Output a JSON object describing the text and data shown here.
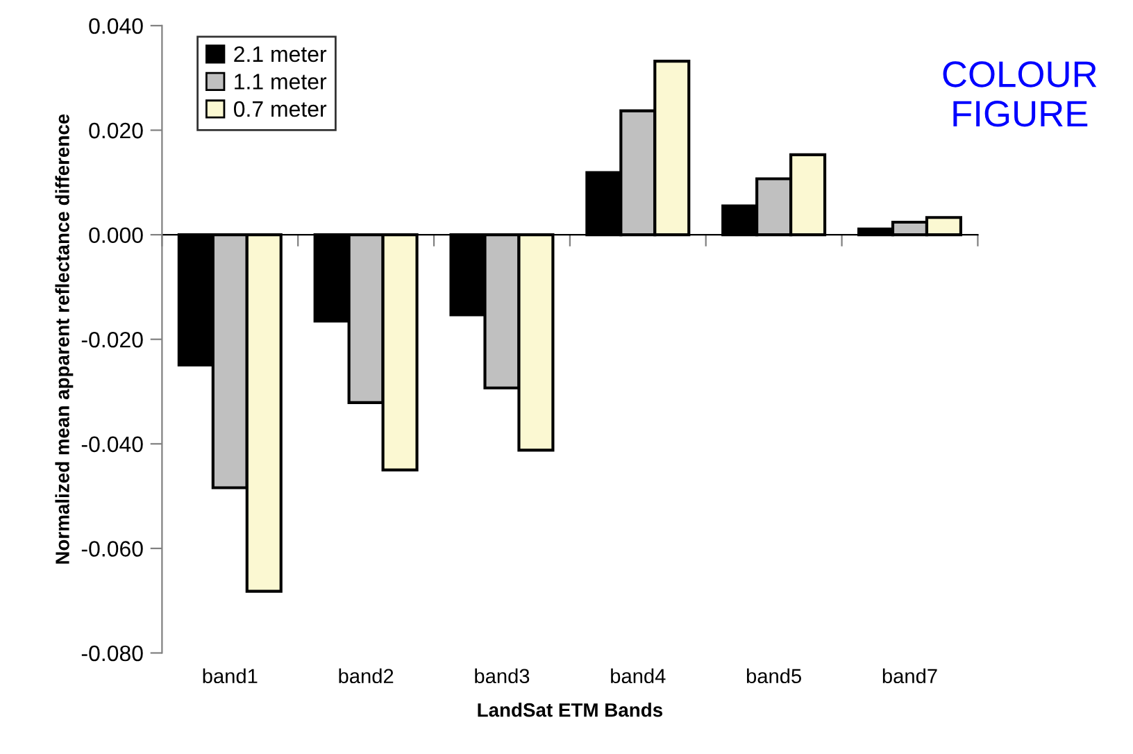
{
  "chart_data": {
    "type": "bar",
    "xlabel": "LandSat ETM Bands",
    "ylabel": "Normalized mean apparent reflectance difference",
    "categories": [
      "band1",
      "band2",
      "band3",
      "band4",
      "band5",
      "band7"
    ],
    "series": [
      {
        "name": "2.1 meter",
        "color": "#000000",
        "values": [
          -0.0249,
          -0.0165,
          -0.0153,
          0.0119,
          0.0055,
          0.0011
        ]
      },
      {
        "name": "1.1 meter",
        "color": "#c0c0c0",
        "values": [
          -0.0484,
          -0.0321,
          -0.0293,
          0.0237,
          0.0107,
          0.0024
        ]
      },
      {
        "name": "0.7 meter",
        "color": "#fbf8d2",
        "values": [
          -0.0682,
          -0.045,
          -0.0412,
          0.0332,
          0.0153,
          0.0033
        ]
      }
    ],
    "ylim": [
      -0.08,
      0.04
    ],
    "yticks": [
      {
        "value": -0.08,
        "label": "-0.080"
      },
      {
        "value": -0.06,
        "label": "-0.060"
      },
      {
        "value": -0.04,
        "label": "-0.040"
      },
      {
        "value": -0.02,
        "label": "-0.020"
      },
      {
        "value": 0,
        "label": "0.000"
      },
      {
        "value": 0.02,
        "label": "0.020"
      },
      {
        "value": 0.04,
        "label": "0.040"
      }
    ],
    "legend": "top left",
    "annotations": [
      "COLOUR FIGURE"
    ]
  }
}
